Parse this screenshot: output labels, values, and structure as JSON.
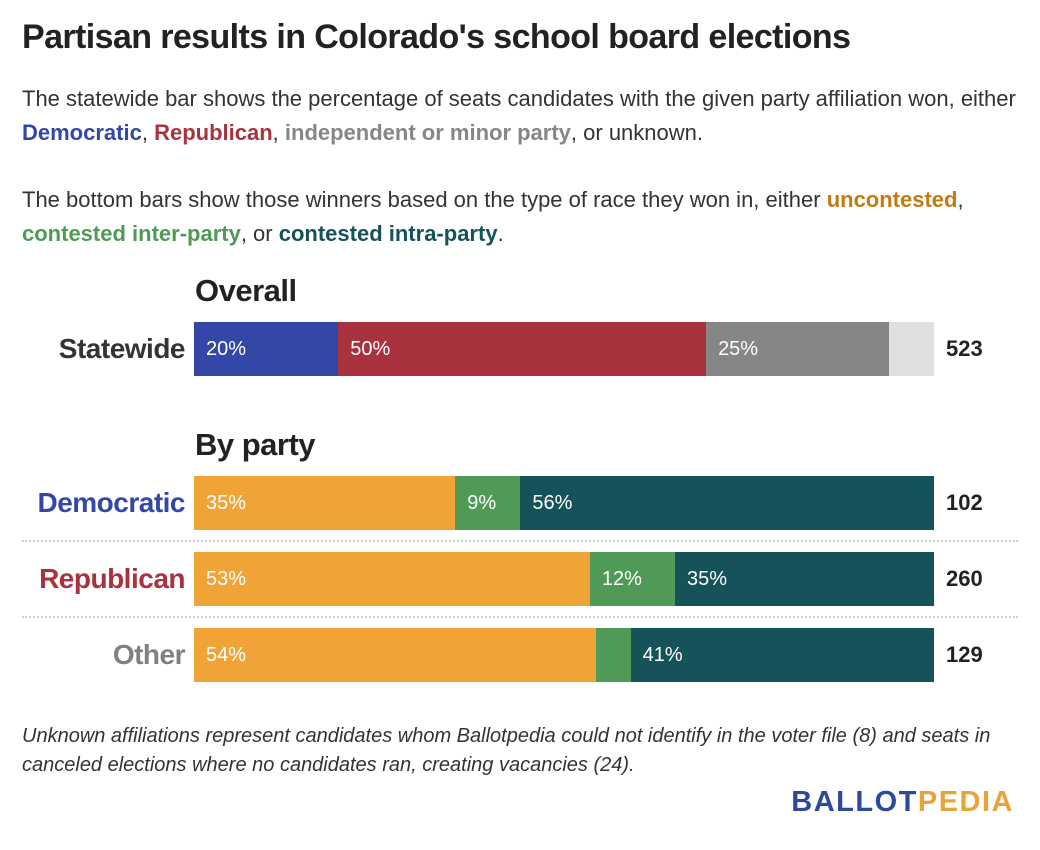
{
  "title": "Partisan results in Colorado's school board elections",
  "description": {
    "p1_prefix": "The statewide bar shows the percentage of seats candidates with the given party affiliation won, either ",
    "p1_dem": "Democratic",
    "p1_sep1": ", ",
    "p1_rep": "Republican",
    "p1_sep2": ", ",
    "p1_ind": "independent or minor party",
    "p1_suffix": ", or unknown.",
    "p2_prefix": "The bottom bars show those winners based on the type of race they won in, either ",
    "p2_unc": "uncontested",
    "p2_sep1": ", ",
    "p2_inter": "contested inter-party",
    "p2_sep2": ", or ",
    "p2_intra": "contested intra-party",
    "p2_suffix": "."
  },
  "colors": {
    "democratic": "#3347a8",
    "republican": "#a8323e",
    "independent": "#868686",
    "unknown": "#e0e0e0",
    "uncontested": "#f0a336",
    "inter_party": "#4f9a57",
    "intra_party": "#15525a",
    "uncontested_text": "#c27a12",
    "other_label": "#808080"
  },
  "chart_data": {
    "type": "bar",
    "stacked": true,
    "orientation": "horizontal",
    "sections": [
      {
        "title": "Overall",
        "rows": [
          {
            "label": "Statewide",
            "total": "523",
            "segments": [
              {
                "category": "Democratic",
                "value": 19.5,
                "label": "20%",
                "color": "#3347a8"
              },
              {
                "category": "Republican",
                "value": 49.7,
                "label": "50%",
                "color": "#a8323e"
              },
              {
                "category": "Independent or minor party",
                "value": 24.7,
                "label": "25%",
                "color": "#868686"
              },
              {
                "category": "Unknown",
                "value": 6.1,
                "label": "",
                "color": "#e0e0e0"
              }
            ]
          }
        ]
      },
      {
        "title": "By party",
        "rows": [
          {
            "label": "Democratic",
            "label_color": "#3347a8",
            "total": "102",
            "segments": [
              {
                "category": "Uncontested",
                "value": 35.3,
                "label": "35%",
                "color": "#f0a336"
              },
              {
                "category": "Contested inter-party",
                "value": 8.8,
                "label": "9%",
                "color": "#4f9a57"
              },
              {
                "category": "Contested intra-party",
                "value": 55.9,
                "label": "56%",
                "color": "#15525a"
              }
            ]
          },
          {
            "label": "Republican",
            "label_color": "#a8323e",
            "total": "260",
            "segments": [
              {
                "category": "Uncontested",
                "value": 53.5,
                "label": "53%",
                "color": "#f0a336"
              },
              {
                "category": "Contested inter-party",
                "value": 11.5,
                "label": "12%",
                "color": "#4f9a57"
              },
              {
                "category": "Contested intra-party",
                "value": 35.0,
                "label": "35%",
                "color": "#15525a"
              }
            ]
          },
          {
            "label": "Other",
            "label_color": "#808080",
            "total": "129",
            "segments": [
              {
                "category": "Uncontested",
                "value": 54.3,
                "label": "54%",
                "color": "#f0a336"
              },
              {
                "category": "Contested inter-party",
                "value": 4.7,
                "label": "",
                "color": "#4f9a57"
              },
              {
                "category": "Contested intra-party",
                "value": 41.0,
                "label": "41%",
                "color": "#15525a"
              }
            ]
          }
        ]
      }
    ],
    "xlim": [
      0,
      100
    ]
  },
  "footnote": "Unknown affiliations represent candidates whom Ballotpedia could not identify in the voter file (8) and seats in canceled elections where no candidates ran, creating vacancies (24).",
  "logo": {
    "part1": "BALLOT",
    "part2": "PEDIA",
    "color1": "#2c4a9a",
    "color2": "#e8a33a"
  }
}
